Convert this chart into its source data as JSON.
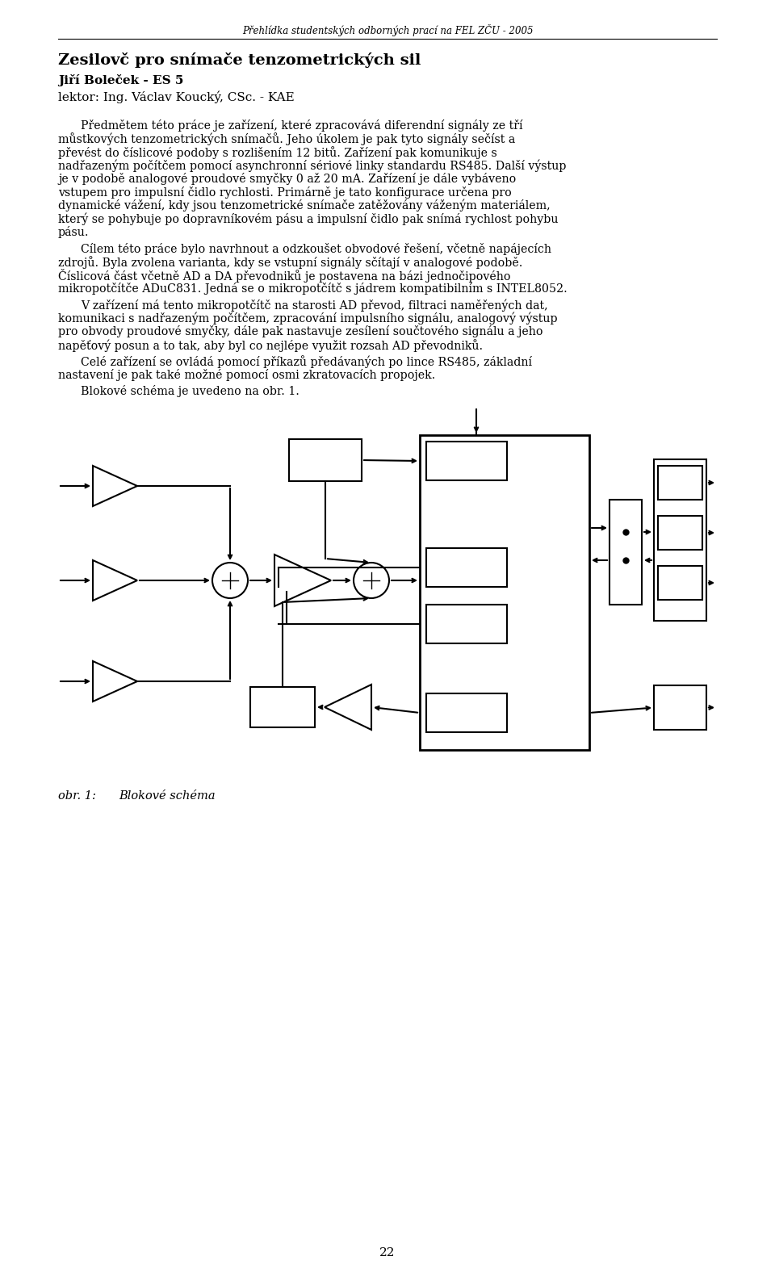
{
  "page_width": 9.6,
  "page_height": 15.72,
  "background_color": "#ffffff",
  "header_text": "Přehlídka studentských odborných prací na FEL ZČU - 2005",
  "title_line1": "Zesilovč pro snímače tenzometrických sil",
  "title_line2": "Jiří Boleček - ES 5",
  "title_line3": "lektor: Ing. Václav Koucký, CSc. - KAE",
  "para1": "Předmětem této práce je zařízení, které zpracovává diferendní signály ze tří můstkových tenzometrických snímačů. Jeho úkolem je pak tyto signály sečíst a převést do číslicové podoby s rozlišením 12 bitů. Zařízení pak komunikuje s nadřazeným počítčem pomocí asynchronní sériové linky standardu RS485. Další výstup je v podobě analogové proudové smyčky 0 až 20 mA. Zařízení je dále vybáveno vstupem pro impulsní čidlo rychlosti. Primárně je tato konfigurace určena pro dynamické vážení, kdy jsou tenzometrické snímače zatěžovány váženým materiálem, který se pohybuje po dopravníkovém pásu a impulsní čidlo pak snímá rychlost pohybu pásu.",
  "para2": "Cílem této práce bylo navrhnout a odzkoušet obvodové řešení, včetně napájecích zdrojů. Byla zvolena varianta, kdy se vstupní signály sčítají v analogové podobě. Číslicová část včetně AD a DA převodniků je postavena na bázi jednočipového mikropotčítče ADuC831. Jedná se o mikropotčítč s jádrem kompatibilním s INTEL8052.",
  "para3": "V zařízení má tento mikropotčítč na starosti AD převod, filtraci naměřených dat, komunikaci s nadřazeným počítčem, zpracování impulsního signálu, analogový výstup pro obvody proudové smyčky, dále pak nastavuje zesílení součtového signálu a jeho napěťový posun a to tak, aby byl co nejlépe využit rozsah AD převodniků.",
  "para4": "Celé zařízení se ovládá pomocí příkazů předávaných po lince RS485, základní nastavení je pak také možné pomocí osmi zkratovacích propojek.",
  "para5": "Blokové schéma je uvedeno na obr. 1.",
  "caption": "obr. 1:",
  "caption2": "Blokové schéma",
  "page_number": "22",
  "text_color": "#000000"
}
